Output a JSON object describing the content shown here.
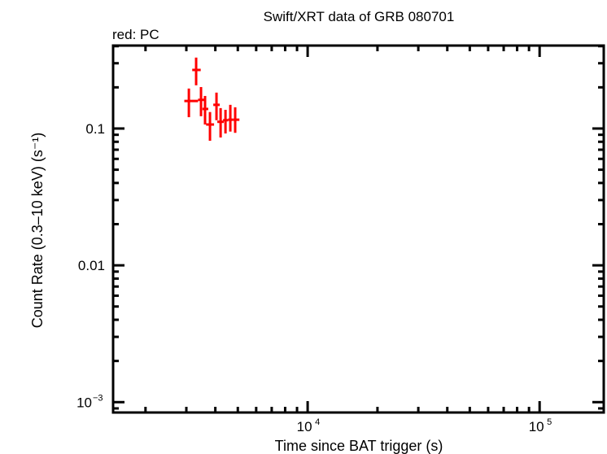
{
  "chart_data": {
    "type": "scatter",
    "title": "Swift/XRT data of GRB 080701",
    "subtitle": "red: PC",
    "xlabel": "Time since BAT trigger (s)",
    "ylabel": "Count Rate (0.3–10 keV) (s⁻¹)",
    "xscale": "log",
    "yscale": "log",
    "xlim": [
      1450,
      189000
    ],
    "ylim": [
      0.00084,
      0.404
    ],
    "x_ticks": [
      {
        "value": 10000,
        "base": "10",
        "exp": "4"
      },
      {
        "value": 100000,
        "base": "10",
        "exp": "5"
      }
    ],
    "y_ticks": [
      {
        "value": 0.1,
        "label": "0.1"
      },
      {
        "value": 0.01,
        "label": "0.01"
      },
      {
        "value": 0.001,
        "label": "10",
        "exp": "−3"
      }
    ],
    "grid": false,
    "legend": "none",
    "series": [
      {
        "name": "PC",
        "color": "#ff0000",
        "points": [
          {
            "t": 3076,
            "t_lo": 2940,
            "t_hi": 3370,
            "rate": 0.159,
            "rate_lo": 0.121,
            "rate_hi": 0.196
          },
          {
            "t": 3306,
            "t_lo": 3180,
            "t_hi": 3460,
            "rate": 0.268,
            "rate_lo": 0.207,
            "rate_hi": 0.33
          },
          {
            "t": 3470,
            "t_lo": 3370,
            "t_hi": 3600,
            "rate": 0.162,
            "rate_lo": 0.123,
            "rate_hi": 0.201
          },
          {
            "t": 3612,
            "t_lo": 3520,
            "t_hi": 3730,
            "rate": 0.139,
            "rate_lo": 0.107,
            "rate_hi": 0.173
          },
          {
            "t": 3793,
            "t_lo": 3650,
            "t_hi": 3950,
            "rate": 0.107,
            "rate_lo": 0.0814,
            "rate_hi": 0.132
          },
          {
            "t": 4046,
            "t_lo": 3920,
            "t_hi": 4180,
            "rate": 0.149,
            "rate_lo": 0.115,
            "rate_hi": 0.183
          },
          {
            "t": 4215,
            "t_lo": 4080,
            "t_hi": 4350,
            "rate": 0.112,
            "rate_lo": 0.086,
            "rate_hi": 0.141
          },
          {
            "t": 4424,
            "t_lo": 4320,
            "t_hi": 4540,
            "rate": 0.115,
            "rate_lo": 0.092,
            "rate_hi": 0.137
          },
          {
            "t": 4642,
            "t_lo": 4540,
            "t_hi": 4760,
            "rate": 0.116,
            "rate_lo": 0.095,
            "rate_hi": 0.149
          },
          {
            "t": 4871,
            "t_lo": 4760,
            "t_hi": 5080,
            "rate": 0.116,
            "rate_lo": 0.093,
            "rate_hi": 0.143
          }
        ]
      }
    ]
  }
}
